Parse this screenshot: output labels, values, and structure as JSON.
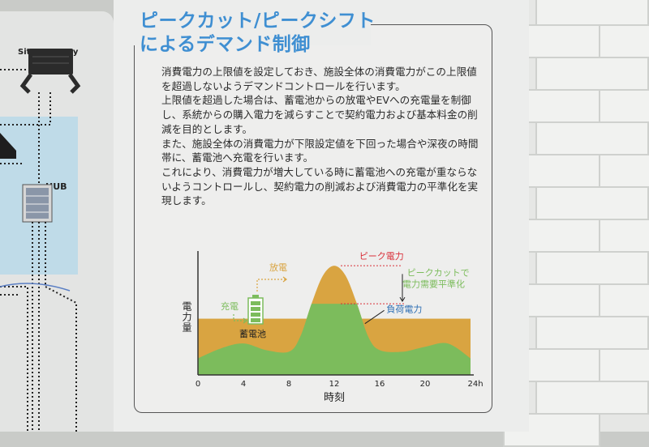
{
  "network": {
    "gateway_label": "Site Gateway",
    "hub_label": "HUB"
  },
  "poster": {
    "title_line1": "ピークカット/ピークシフト",
    "title_line2": "によるデマンド制御",
    "paragraphs": [
      "消費電力の上限値を設定しておき、施設全体の消費電力がこの上限値を超過しないようデマンドコントロールを行います。",
      "上限値を超過した場合は、蓄電池からの放電やEVへの充電量を制御し、系統からの購入電力を減らすことで契約電力および基本料金の削減を目的とします。",
      "また、施設全体の消費電力が下限設定値を下回った場合や深夜の時間帯に、蓄電池へ充電を行います。",
      "これにより、消費電力が増大している時に蓄電池への充電が重ならないようコントロールし、契約電力の削減および消費電力の平準化を実現します。"
    ]
  },
  "chart_data": {
    "type": "area",
    "xlabel": "時刻",
    "ylabel": "電力量",
    "x_ticks": [
      "0",
      "4",
      "8",
      "12",
      "16",
      "20",
      "24h"
    ],
    "xlim": [
      0,
      24
    ],
    "labels": {
      "discharge": "放電",
      "charge": "充電",
      "battery": "蓄電池",
      "peak_power": "ピーク電力",
      "peak_cut_line1": "ピークカットで",
      "peak_cut_line2": "電力需要平準化",
      "load_power": "負荷電力"
    },
    "series": [
      {
        "name": "ピーク電力",
        "x": [
          0,
          2,
          4,
          6,
          8,
          9,
          10,
          11,
          12,
          13,
          14,
          15,
          16,
          18,
          20,
          22,
          24
        ],
        "values": [
          1.0,
          1.6,
          1.9,
          1.5,
          1.4,
          2.3,
          4.3,
          6.0,
          6.6,
          6.0,
          4.3,
          2.3,
          1.5,
          1.4,
          1.7,
          1.9,
          1.0
        ]
      },
      {
        "name": "負荷電力",
        "x": [
          0,
          24
        ],
        "values": [
          3.4,
          3.4
        ]
      }
    ],
    "levelled_cap": 4.3,
    "colors": {
      "orange": "#d9a441",
      "green": "#7cbc5c",
      "red": "#d9303a",
      "blue": "#2e6fb4",
      "axis": "#333333"
    }
  }
}
